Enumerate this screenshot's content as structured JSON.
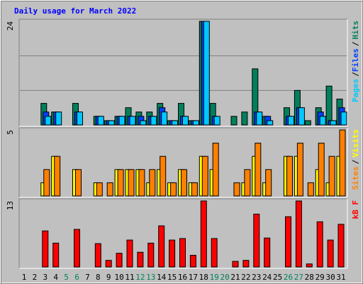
{
  "chart_data": {
    "type": "bar",
    "title": "Daily usage for March 2022",
    "categories": [
      "1",
      "2",
      "3",
      "4",
      "5",
      "6",
      "7",
      "8",
      "9",
      "10",
      "11",
      "12",
      "13",
      "14",
      "15",
      "16",
      "17",
      "18",
      "19",
      "20",
      "21",
      "22",
      "23",
      "24",
      "25",
      "26",
      "27",
      "28",
      "29",
      "30",
      "31"
    ],
    "category_colors": [
      "#000000",
      "#000000",
      "#000000",
      "#000000",
      "#00805c",
      "#00805c",
      "#000000",
      "#000000",
      "#000000",
      "#000000",
      "#000000",
      "#00805c",
      "#00805c",
      "#000000",
      "#000000",
      "#000000",
      "#000000",
      "#000000",
      "#00805c",
      "#00805c",
      "#000000",
      "#000000",
      "#000000",
      "#000000",
      "#000000",
      "#00805c",
      "#00805c",
      "#000000",
      "#000000",
      "#000000",
      "#000000"
    ],
    "legend_separator": "/",
    "panels": [
      {
        "ylim": [
          0,
          24
        ],
        "yticks": [
          24
        ],
        "gridlines": [
          8,
          16
        ],
        "series": [
          {
            "name": "Hits",
            "color": "#00805c",
            "values": [
              0,
              0,
              5,
              3,
              0,
              5,
              0,
              2,
              1,
              2,
              4,
              3,
              3,
              5,
              1,
              5,
              1,
              24,
              5,
              0,
              2,
              3,
              13,
              2,
              0,
              4,
              8,
              1,
              4,
              9,
              6
            ]
          },
          {
            "name": "Files",
            "color": "#0040ff",
            "values": [
              0,
              0,
              3,
              3,
              0,
              3,
              0,
              2,
              1,
              2,
              2,
              2,
              2,
              4,
              1,
              2,
              1,
              24,
              2,
              0,
              0,
              0,
              3,
              2,
              0,
              2,
              4,
              0,
              3,
              1,
              4
            ]
          },
          {
            "name": "Pages",
            "color": "#00c8ff",
            "values": [
              0,
              0,
              2,
              3,
              0,
              3,
              0,
              2,
              1,
              2,
              2,
              1,
              2,
              3,
              1,
              2,
              1,
              24,
              2,
              0,
              0,
              0,
              3,
              1,
              0,
              2,
              4,
              0,
              2,
              1,
              3
            ]
          }
        ]
      },
      {
        "ylim": [
          0,
          5
        ],
        "yticks": [
          5
        ],
        "series": [
          {
            "name": "Visits",
            "color": "#ffff00",
            "values": [
              0,
              0,
              1,
              3,
              0,
              2,
              0,
              1,
              0,
              2,
              2,
              2,
              1,
              2,
              1,
              2,
              1,
              3,
              2,
              0,
              0,
              1,
              3,
              1,
              0,
              3,
              3,
              0,
              2,
              1,
              3
            ]
          },
          {
            "name": "Sites",
            "color": "#ff8000",
            "values": [
              0,
              0,
              2,
              3,
              0,
              2,
              0,
              1,
              1,
              2,
              2,
              2,
              2,
              3,
              1,
              2,
              1,
              3,
              4,
              0,
              1,
              2,
              4,
              2,
              0,
              3,
              4,
              1,
              4,
              3,
              5
            ]
          }
        ]
      },
      {
        "ylim": [
          0,
          13
        ],
        "yticks": [
          13
        ],
        "series": [
          {
            "name": "kB F",
            "color": "#ff0000",
            "values": [
              0,
              0,
              7.1,
              4.7,
              0,
              7.4,
              0,
              4.6,
              1.3,
              2.7,
              5.3,
              2.9,
              4.7,
              8.1,
              5.3,
              5.6,
              2.3,
              13,
              5.6,
              0,
              1.1,
              1.3,
              10.4,
              5.7,
              0,
              9.9,
              13,
              0.6,
              8.9,
              5.3,
              8.4
            ]
          }
        ]
      }
    ]
  }
}
